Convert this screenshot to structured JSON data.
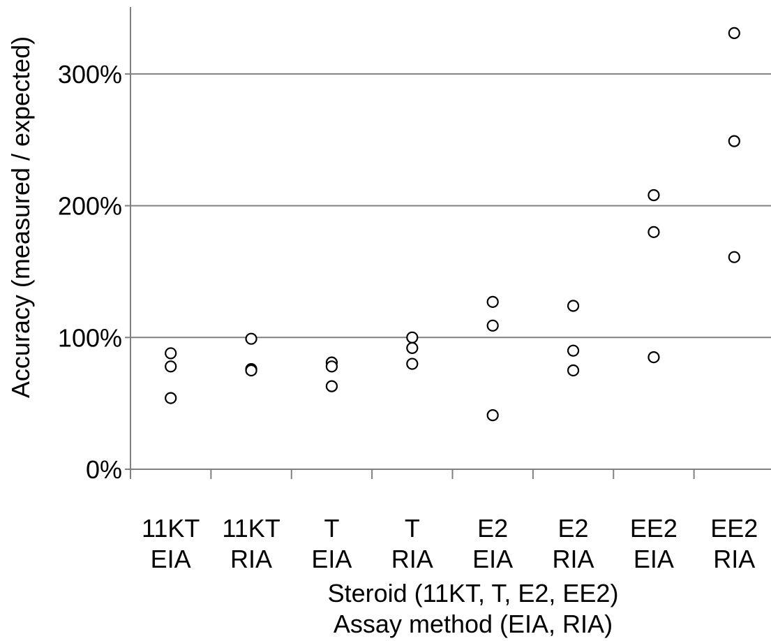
{
  "chart_data": {
    "type": "scatter",
    "title": "",
    "xlabel": [
      "Steroid (11KT, T, E2, EE2)",
      "Assay method  (EIA, RIA)"
    ],
    "ylabel": "Accuracy (measured  / expected)",
    "ylim": [
      0,
      3.5
    ],
    "yticks": [
      0,
      1,
      2,
      3
    ],
    "ytick_labels": [
      "0%",
      "100%",
      "200%",
      "300%"
    ],
    "grid": "horizontal",
    "legend": "none",
    "marker": "open-circle",
    "categories": [
      {
        "steroid": "11KT",
        "method": "EIA",
        "values": [
          0.88,
          0.78,
          0.54
        ]
      },
      {
        "steroid": "11KT",
        "method": "RIA",
        "values": [
          0.99,
          0.76,
          0.75
        ]
      },
      {
        "steroid": "T",
        "method": "EIA",
        "values": [
          0.81,
          0.78,
          0.63
        ]
      },
      {
        "steroid": "T",
        "method": "RIA",
        "values": [
          1.0,
          0.92,
          0.8
        ]
      },
      {
        "steroid": "E2",
        "method": "EIA",
        "values": [
          1.27,
          1.09,
          0.41
        ]
      },
      {
        "steroid": "E2",
        "method": "RIA",
        "values": [
          1.24,
          0.9,
          0.75
        ]
      },
      {
        "steroid": "EE2",
        "method": "EIA",
        "values": [
          2.08,
          1.8,
          0.85
        ]
      },
      {
        "steroid": "EE2",
        "method": "RIA",
        "values": [
          3.31,
          2.49,
          1.61
        ]
      }
    ],
    "colors": {
      "axis": "#808080",
      "grid": "#808080",
      "marker_stroke": "#000000",
      "marker_fill": "#ffffff"
    }
  }
}
